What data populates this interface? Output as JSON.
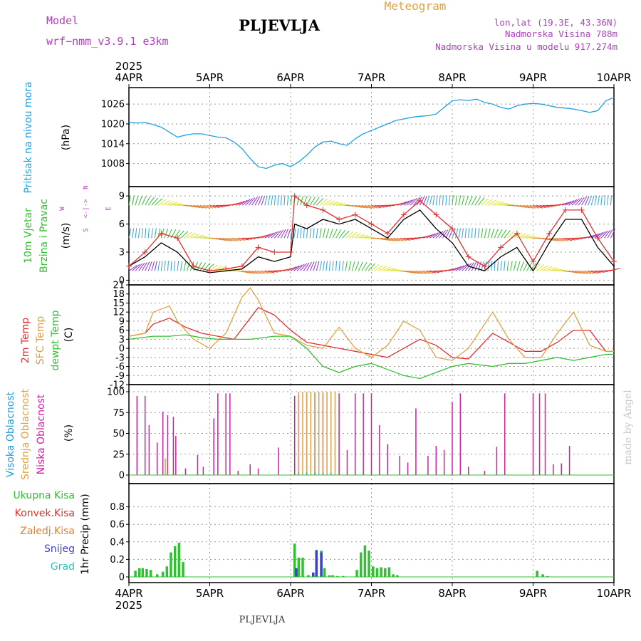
{
  "header": {
    "model_label": "Model",
    "model_name": "wrf−nmm_v3.9.1 e3km",
    "station": "PLJEVLJA",
    "meteogram_label": "Meteogram",
    "lonlat": "lon,lat (19.3E, 43.36N)",
    "elevation": "Nadmorska Visina 788m",
    "model_elevation": "Nadmorska Visina u modelu 917.274m",
    "footer_station": "PLJEVLJA",
    "watermark": "made by Angel",
    "colors": {
      "purple": "#b040c0",
      "orange": "#e0a040",
      "title": "#000000",
      "watermark": "#c8c8c8"
    }
  },
  "time_axis": {
    "year": "2025",
    "day_labels": [
      "4APR",
      "5APR",
      "6APR",
      "7APR",
      "8APR",
      "9APR",
      "10APR"
    ],
    "total_days": 6
  },
  "chart_data": [
    {
      "type": "line",
      "name": "pressure",
      "ylabel": "Pritisak na nivou mora",
      "unit": "(hPa)",
      "ylabel_color": "#20a0e0",
      "ylim": [
        1001,
        1031
      ],
      "yticks": [
        1008,
        1014,
        1020,
        1026
      ],
      "series": [
        {
          "name": "Pritisak",
          "color": "#20a0e0",
          "x": [
            0,
            0.1,
            0.2,
            0.3,
            0.4,
            0.5,
            0.6,
            0.7,
            0.8,
            0.9,
            1.0,
            1.1,
            1.2,
            1.3,
            1.4,
            1.5,
            1.6,
            1.7,
            1.8,
            1.9,
            2.0,
            2.1,
            2.2,
            2.3,
            2.4,
            2.5,
            2.6,
            2.7,
            2.8,
            2.9,
            3.0,
            3.1,
            3.2,
            3.3,
            3.4,
            3.5,
            3.6,
            3.7,
            3.8,
            3.9,
            4.0,
            4.1,
            4.2,
            4.3,
            4.4,
            4.5,
            4.6,
            4.7,
            4.8,
            4.9,
            5.0,
            5.1,
            5.2,
            5.3,
            5.4,
            5.5,
            5.6,
            5.7,
            5.8,
            5.9,
            6.0
          ],
          "values": [
            1020.5,
            1020.3,
            1020.4,
            1019.8,
            1019,
            1017.5,
            1016,
            1016.6,
            1017.0,
            1017.0,
            1016.5,
            1016.0,
            1015.8,
            1014.5,
            1012.5,
            1009.5,
            1007.0,
            1006.5,
            1007.5,
            1008.0,
            1007.0,
            1008.5,
            1010.5,
            1013.0,
            1014.5,
            1014.8,
            1014.0,
            1013.5,
            1015.5,
            1017.0,
            1018.0,
            1019.0,
            1020.0,
            1021.0,
            1021.5,
            1022.0,
            1022.3,
            1022.5,
            1023.0,
            1025.0,
            1027.0,
            1027.3,
            1027.1,
            1027.5,
            1026.5,
            1026.0,
            1025.0,
            1024.5,
            1025.5,
            1026.0,
            1026.2,
            1026.0,
            1025.5,
            1025.0,
            1024.8,
            1024.5,
            1024.0,
            1023.5,
            1024.0,
            1027.0,
            1028.0
          ]
        }
      ]
    },
    {
      "type": "line",
      "name": "wind",
      "ylabel": "10m Vjetar Brzina i Pravac",
      "ylabel_lines": [
        "10m Vjetar",
        "Brzina i Pravac"
      ],
      "unit": "(m/s)",
      "ylabel_color": "#30c030",
      "compass": "N",
      "compass_w": "W",
      "compass_e": "E",
      "compass_s": "S",
      "ylim": [
        -0.5,
        10
      ],
      "yticks": [
        0,
        3,
        6,
        9
      ],
      "barb_rows": [
        1,
        4.5,
        8
      ],
      "series": [
        {
          "name": "speed",
          "color": "#000000",
          "x": [
            0,
            0.2,
            0.4,
            0.6,
            0.8,
            1.0,
            1.2,
            1.4,
            1.6,
            1.8,
            2.0,
            2.05,
            2.2,
            2.4,
            2.6,
            2.8,
            3.0,
            3.2,
            3.4,
            3.6,
            3.8,
            4.0,
            4.2,
            4.4,
            4.6,
            4.8,
            5.0,
            5.2,
            5.4,
            5.6,
            5.8,
            6.0
          ],
          "values": [
            1.5,
            2.5,
            4.0,
            3.0,
            1.2,
            0.8,
            1.0,
            1.2,
            2.5,
            2.0,
            2.5,
            6.0,
            5.5,
            6.5,
            6.0,
            6.5,
            5.5,
            4.5,
            6.5,
            7.5,
            5.5,
            4.0,
            1.5,
            1.0,
            2.5,
            3.5,
            1.0,
            4.0,
            6.5,
            6.5,
            3.5,
            1.5
          ]
        },
        {
          "name": "gust",
          "color": "#e03030",
          "x": [
            0,
            0.2,
            0.4,
            0.6,
            0.8,
            1.0,
            1.2,
            1.4,
            1.6,
            1.8,
            2.0,
            2.05,
            2.2,
            2.4,
            2.6,
            2.8,
            3.0,
            3.2,
            3.4,
            3.6,
            3.8,
            4.0,
            4.2,
            4.4,
            4.6,
            4.8,
            5.0,
            5.2,
            5.4,
            5.6,
            5.8,
            6.0
          ],
          "values": [
            1.5,
            3.0,
            5.0,
            4.5,
            1.5,
            1.0,
            1.2,
            1.5,
            3.5,
            3.0,
            3.0,
            9.0,
            8.0,
            7.5,
            6.5,
            7.0,
            6.0,
            5.0,
            7.0,
            8.5,
            7.0,
            5.5,
            2.5,
            1.5,
            3.5,
            5.0,
            2.0,
            5.0,
            7.5,
            7.5,
            4.5,
            2.0
          ]
        }
      ]
    },
    {
      "type": "line",
      "name": "temperature",
      "ylabel_lines": [
        "2m Temp",
        "SFC Temp",
        "dewpt Temp"
      ],
      "ylabel_colors": [
        "#e03030",
        "#e0a040",
        "#30c030"
      ],
      "unit": "(C)",
      "ylim": [
        -12,
        21
      ],
      "yticks": [
        -12,
        -9,
        -6,
        -3,
        0,
        3,
        6,
        9,
        12,
        15,
        18,
        21
      ],
      "series": [
        {
          "name": "2m Temp",
          "color": "#e03030",
          "x": [
            0,
            0.2,
            0.3,
            0.5,
            0.7,
            0.9,
            1.1,
            1.3,
            1.5,
            1.6,
            1.8,
            2.0,
            2.2,
            2.4,
            2.6,
            2.8,
            3.0,
            3.2,
            3.4,
            3.6,
            3.8,
            4.0,
            4.2,
            4.5,
            4.7,
            4.9,
            5.1,
            5.3,
            5.5,
            5.7,
            5.9,
            6.0
          ],
          "values": [
            4,
            5,
            8,
            10,
            7,
            5,
            4,
            3,
            10,
            13.5,
            11,
            6,
            2,
            1,
            0,
            -1,
            -2,
            -3,
            0,
            3,
            1,
            -3,
            -3.5,
            5,
            2,
            -1,
            -1,
            2,
            6,
            6,
            -1,
            -1
          ]
        },
        {
          "name": "SFC Temp",
          "color": "#e0a040",
          "x": [
            0,
            0.2,
            0.3,
            0.5,
            0.6,
            0.8,
            1.0,
            1.2,
            1.4,
            1.5,
            1.6,
            1.8,
            2.0,
            2.2,
            2.4,
            2.6,
            2.8,
            3.0,
            3.2,
            3.4,
            3.6,
            3.8,
            4.0,
            4.2,
            4.5,
            4.7,
            4.9,
            5.1,
            5.3,
            5.5,
            5.7,
            5.9,
            6.0
          ],
          "values": [
            4,
            5,
            12,
            14,
            9,
            3,
            0,
            5,
            17,
            20,
            16,
            5,
            4,
            1,
            0,
            7,
            0,
            -3,
            1,
            9,
            6,
            -3,
            -4,
            0,
            12,
            3,
            -3,
            -3,
            5,
            12,
            1,
            -1,
            -1
          ]
        },
        {
          "name": "dewpt Temp",
          "color": "#30c030",
          "x": [
            0,
            0.3,
            0.5,
            0.7,
            0.9,
            1.1,
            1.3,
            1.5,
            1.8,
            2.0,
            2.2,
            2.4,
            2.6,
            2.8,
            3.0,
            3.2,
            3.4,
            3.6,
            3.8,
            4.0,
            4.2,
            4.5,
            4.7,
            4.9,
            5.1,
            5.3,
            5.5,
            5.7,
            5.9,
            6.0
          ],
          "values": [
            3,
            4,
            4,
            4.5,
            3.5,
            3,
            3,
            3,
            4,
            4,
            0,
            -6,
            -8,
            -6,
            -5,
            -7,
            -9,
            -10,
            -8,
            -6,
            -5,
            -6,
            -5,
            -5,
            -4,
            -3,
            -4,
            -3,
            -2,
            -2
          ]
        }
      ]
    },
    {
      "type": "bar",
      "name": "cloud",
      "ylabel_lines": [
        "Visoka Oblacnost",
        "Srednja Oblacnost",
        "Niska Oblacnost"
      ],
      "ylabel_colors": [
        "#20a0e0",
        "#e0a040",
        "#d020a0"
      ],
      "unit": "(%)",
      "ylim": [
        0,
        100
      ],
      "yticks": [
        0,
        25,
        50,
        75,
        100
      ],
      "series": [
        {
          "name": "Niska",
          "color": "#d020a0",
          "x": [
            0.1,
            0.2,
            0.25,
            0.35,
            0.42,
            0.48,
            0.55,
            0.58,
            0.7,
            0.85,
            0.92,
            1.05,
            1.1,
            1.2,
            1.25,
            1.35,
            1.5,
            1.6,
            1.85,
            2.05,
            2.1,
            2.2,
            2.3,
            2.4,
            2.5,
            2.6,
            2.7,
            2.8,
            2.9,
            3.0,
            3.1,
            3.2,
            3.35,
            3.45,
            3.55,
            3.7,
            3.8,
            3.9,
            4.0,
            4.1,
            4.2,
            4.4,
            4.55,
            4.65,
            5.0,
            5.08,
            5.15,
            5.25,
            5.35,
            5.45
          ],
          "values": [
            95,
            95,
            60,
            39,
            76,
            72,
            70,
            47,
            8,
            24,
            10,
            68,
            98,
            98,
            98,
            5,
            13,
            8,
            33,
            95,
            97,
            98,
            98,
            98,
            98,
            98,
            30,
            98,
            98,
            98,
            60,
            37,
            23,
            15,
            80,
            23,
            35,
            30,
            88,
            98,
            10,
            5,
            34,
            98,
            98,
            98,
            98,
            13,
            14,
            35
          ]
        },
        {
          "name": "Srednja",
          "color": "#e0a040",
          "x": [
            0.45,
            2.1,
            2.15,
            2.2,
            2.25,
            2.3,
            2.35,
            2.4,
            2.45,
            2.5,
            2.55
          ],
          "values": [
            20,
            100,
            100,
            100,
            100,
            100,
            100,
            100,
            100,
            100,
            100
          ]
        },
        {
          "name": "Visoka",
          "color": "#20a0e0",
          "x": [
            2.1,
            2.2,
            2.3,
            2.4,
            2.5
          ],
          "values": [
            3,
            3,
            3,
            3,
            3
          ]
        }
      ]
    },
    {
      "type": "bar",
      "name": "precip",
      "legend": [
        "Ukupna Kisa",
        "Konvek.Kisa",
        "Zaledj.Kisa",
        "Snijeg",
        "Grad"
      ],
      "legend_colors": [
        "#30c030",
        "#e03030",
        "#e08030",
        "#4040d0",
        "#30c0c0"
      ],
      "ylabel": "1hr Precip (mm)",
      "ylim": [
        0,
        1.0
      ],
      "yticks": [
        0,
        0.2,
        0.4,
        0.6,
        0.8
      ],
      "series": [
        {
          "name": "Ukupna Kisa",
          "color": "#30c030",
          "x": [
            0.08,
            0.13,
            0.17,
            0.22,
            0.27,
            0.35,
            0.42,
            0.47,
            0.52,
            0.57,
            0.62,
            0.67,
            2.05,
            2.1,
            2.15,
            2.22,
            2.28,
            2.32,
            2.38,
            2.42,
            2.48,
            2.52,
            2.58,
            2.65,
            2.82,
            2.87,
            2.92,
            2.97,
            3.02,
            3.07,
            3.12,
            3.17,
            3.22,
            3.27,
            3.32,
            5.05,
            5.12,
            5.18
          ],
          "values": [
            0.07,
            0.1,
            0.1,
            0.09,
            0.08,
            0.03,
            0.06,
            0.12,
            0.28,
            0.35,
            0.39,
            0.17,
            0.38,
            0.22,
            0.22,
            0.02,
            0.05,
            0.31,
            0.3,
            0.1,
            0.02,
            0.02,
            0.01,
            0.01,
            0.08,
            0.28,
            0.36,
            0.3,
            0.12,
            0.1,
            0.11,
            0.1,
            0.11,
            0.03,
            0.02,
            0.07,
            0.03,
            0.01
          ]
        },
        {
          "name": "Snijeg",
          "color": "#4040d0",
          "x": [
            2.07,
            2.28,
            2.32,
            2.38
          ],
          "values": [
            0.1,
            0.05,
            0.3,
            0.28
          ]
        }
      ]
    }
  ]
}
